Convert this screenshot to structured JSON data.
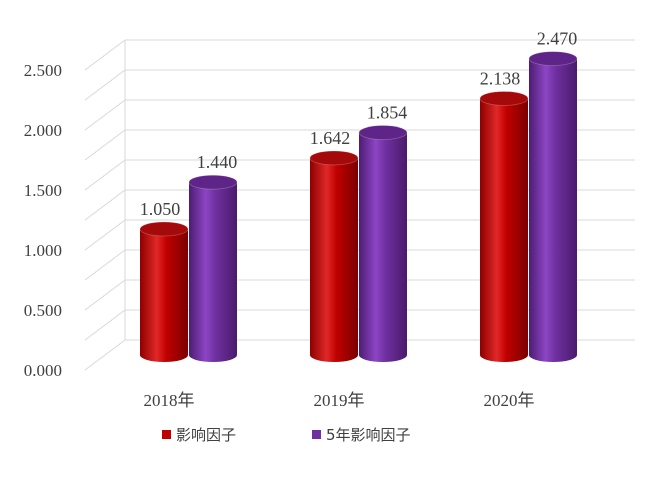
{
  "chart_data": {
    "type": "bar",
    "style": "3d-cylinder",
    "categories": [
      "2018年",
      "2019年",
      "2020年"
    ],
    "series": [
      {
        "name": "影响因子",
        "values": [
          1.05,
          1.642,
          2.138
        ],
        "color": "#C00000"
      },
      {
        "name": "5年影响因子",
        "values": [
          1.44,
          1.854,
          2.47
        ],
        "color": "#7030A0"
      }
    ],
    "data_labels": [
      [
        "1.050",
        "1.642",
        "2.138"
      ],
      [
        "1.440",
        "1.854",
        "2.470"
      ]
    ],
    "yticks": [
      "0.000",
      "0.500",
      "1.000",
      "1.500",
      "2.000",
      "2.500"
    ],
    "tick_values": [
      0,
      0.5,
      1.0,
      1.5,
      2.0,
      2.5
    ],
    "ylim": [
      0,
      2.5
    ],
    "grid": true,
    "legend_position": "bottom-left",
    "gridline_color": "#d9d9d9",
    "title": "",
    "xlabel": "",
    "ylabel": ""
  }
}
